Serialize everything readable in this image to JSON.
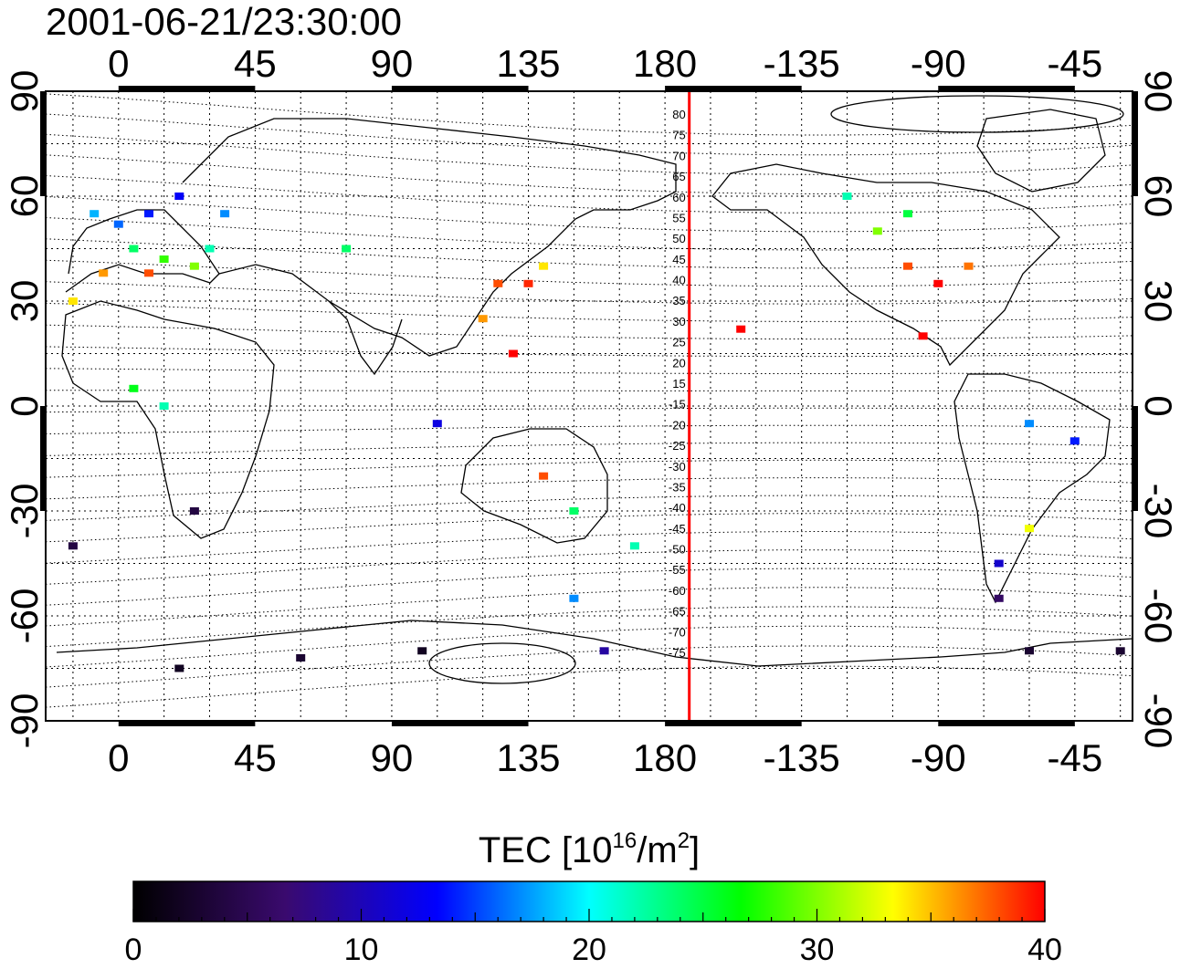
{
  "header": {
    "datetime": "2001-06-21/23:30:00"
  },
  "map": {
    "x_ticks": [
      "0",
      "45",
      "90",
      "135",
      "180",
      "-135",
      "-90",
      "-45"
    ],
    "y_ticks": [
      "90",
      "60",
      "30",
      "0",
      "-30",
      "-60",
      "-90"
    ],
    "contour_labels": [
      "80",
      "75",
      "70",
      "65",
      "60",
      "55",
      "50",
      "45",
      "40",
      "35",
      "30",
      "25",
      "20",
      "15",
      "-15",
      "-20",
      "-25",
      "-30",
      "-35",
      "-40",
      "-45",
      "-50",
      "-55",
      "-60",
      "-65",
      "-70",
      "-75"
    ],
    "data_points": [
      {
        "lon": -8,
        "lat": 55,
        "tec": 18
      },
      {
        "lon": 0,
        "lat": 52,
        "tec": 16
      },
      {
        "lon": 10,
        "lat": 55,
        "tec": 14
      },
      {
        "lon": 20,
        "lat": 60,
        "tec": 13
      },
      {
        "lon": 5,
        "lat": 45,
        "tec": 24
      },
      {
        "lon": 15,
        "lat": 42,
        "tec": 28
      },
      {
        "lon": 25,
        "lat": 40,
        "tec": 30
      },
      {
        "lon": -5,
        "lat": 38,
        "tec": 36
      },
      {
        "lon": 10,
        "lat": 38,
        "tec": 38
      },
      {
        "lon": 30,
        "lat": 45,
        "tec": 22
      },
      {
        "lon": 35,
        "lat": 55,
        "tec": 17
      },
      {
        "lon": 75,
        "lat": 45,
        "tec": 24
      },
      {
        "lon": 125,
        "lat": 35,
        "tec": 38
      },
      {
        "lon": 135,
        "lat": 35,
        "tec": 39
      },
      {
        "lon": 140,
        "lat": 40,
        "tec": 34
      },
      {
        "lon": 130,
        "lat": 15,
        "tec": 40
      },
      {
        "lon": 120,
        "lat": 25,
        "tec": 36
      },
      {
        "lon": -90,
        "lat": 35,
        "tec": 40
      },
      {
        "lon": -100,
        "lat": 40,
        "tec": 38
      },
      {
        "lon": -80,
        "lat": 40,
        "tec": 37
      },
      {
        "lon": -110,
        "lat": 50,
        "tec": 30
      },
      {
        "lon": -100,
        "lat": 55,
        "tec": 25
      },
      {
        "lon": -120,
        "lat": 60,
        "tec": 22
      },
      {
        "lon": -95,
        "lat": 20,
        "tec": 40
      },
      {
        "lon": -155,
        "lat": 22,
        "tec": 40
      },
      {
        "lon": -60,
        "lat": -5,
        "tec": 17
      },
      {
        "lon": -45,
        "lat": -10,
        "tec": 14
      },
      {
        "lon": -60,
        "lat": -35,
        "tec": 33
      },
      {
        "lon": -70,
        "lat": -45,
        "tec": 11
      },
      {
        "lon": -70,
        "lat": -55,
        "tec": 6
      },
      {
        "lon": 25,
        "lat": -30,
        "tec": 4
      },
      {
        "lon": 105,
        "lat": -5,
        "tec": 12
      },
      {
        "lon": 140,
        "lat": -20,
        "tec": 38
      },
      {
        "lon": 150,
        "lat": -30,
        "tec": 24
      },
      {
        "lon": 170,
        "lat": -40,
        "tec": 22
      },
      {
        "lon": 150,
        "lat": -55,
        "tec": 17
      },
      {
        "lon": 100,
        "lat": -70,
        "tec": 2
      },
      {
        "lon": 60,
        "lat": -72,
        "tec": 3
      },
      {
        "lon": 20,
        "lat": -75,
        "tec": 2
      },
      {
        "lon": 160,
        "lat": -70,
        "tec": 9
      },
      {
        "lon": -30,
        "lat": -70,
        "tec": 3
      },
      {
        "lon": 15,
        "lat": 0,
        "tec": 22
      },
      {
        "lon": 5,
        "lat": 5,
        "tec": 26
      },
      {
        "lon": -15,
        "lat": 30,
        "tec": 34
      },
      {
        "lon": -60,
        "lat": -70,
        "tec": 3
      },
      {
        "lon": -15,
        "lat": -40,
        "tec": 4
      }
    ],
    "marker_longitude": -172
  },
  "colorbar": {
    "title_prefix": "TEC  [10",
    "title_exp1": "16",
    "title_mid": "/m",
    "title_exp2": "2",
    "title_suffix": "]",
    "ticks": [
      "0",
      "10",
      "20",
      "30",
      "40"
    ],
    "range": [
      0,
      40
    ],
    "colors": [
      "#000000",
      "#3a0a6e",
      "#0000ff",
      "#00ffff",
      "#00ff00",
      "#ffff00",
      "#ff0000"
    ]
  }
}
